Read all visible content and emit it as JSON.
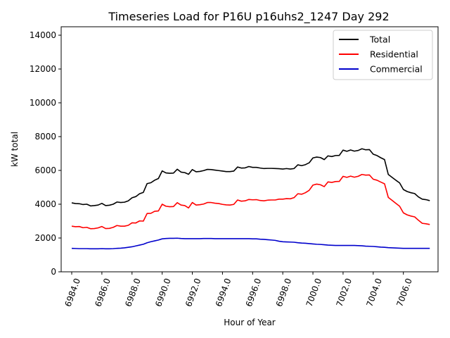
{
  "chart_data": {
    "type": "line",
    "title": "Timeseries Load for P16U p16uhs2_1247  Day 292",
    "xlabel": "Hour of Year",
    "ylabel": "kW total",
    "xlim": [
      6983.3,
      7008.3
    ],
    "ylim": [
      0,
      14500
    ],
    "xticks": [
      6984,
      6986,
      6988,
      6990,
      6992,
      6994,
      6996,
      6998,
      7000,
      7002,
      7004,
      7006
    ],
    "xtick_labels": [
      "6984.0",
      "6986.0",
      "6988.0",
      "6990.0",
      "6992.0",
      "6994.0",
      "6996.0",
      "6998.0",
      "7000.0",
      "7002.0",
      "7004.0",
      "7006.0"
    ],
    "yticks": [
      0,
      2000,
      4000,
      6000,
      8000,
      10000,
      12000,
      14000
    ],
    "ytick_labels": [
      "0",
      "2000",
      "4000",
      "6000",
      "8000",
      "10000",
      "12000",
      "14000"
    ],
    "grid": false,
    "legend_position": "top-right",
    "x_start": 6984,
    "x_step": 0.25,
    "series": [
      {
        "name": "Total",
        "color": "#000000",
        "values": [
          4080,
          4040,
          4030,
          3980,
          4000,
          3900,
          3920,
          3950,
          4050,
          3920,
          3940,
          4000,
          4130,
          4100,
          4120,
          4200,
          4380,
          4450,
          4620,
          4700,
          5220,
          5270,
          5420,
          5520,
          5970,
          5850,
          5830,
          5840,
          6070,
          5900,
          5870,
          5770,
          6050,
          5920,
          5940,
          5990,
          6060,
          6050,
          6020,
          5990,
          5960,
          5930,
          5930,
          5960,
          6200,
          6140,
          6150,
          6230,
          6180,
          6180,
          6140,
          6110,
          6120,
          6120,
          6110,
          6100,
          6080,
          6110,
          6080,
          6110,
          6330,
          6280,
          6340,
          6450,
          6740,
          6790,
          6760,
          6640,
          6860,
          6820,
          6880,
          6890,
          7200,
          7130,
          7210,
          7140,
          7180,
          7280,
          7220,
          7230,
          6960,
          6880,
          6750,
          6640,
          5760,
          5590,
          5420,
          5260,
          4870,
          4750,
          4680,
          4630,
          4430,
          4300,
          4270,
          4210
        ]
      },
      {
        "name": "Residential",
        "color": "#ff0000",
        "values": [
          2700,
          2670,
          2680,
          2610,
          2630,
          2550,
          2560,
          2600,
          2680,
          2560,
          2570,
          2630,
          2740,
          2700,
          2700,
          2750,
          2900,
          2890,
          3010,
          3000,
          3450,
          3460,
          3580,
          3600,
          4000,
          3880,
          3850,
          3860,
          4090,
          3950,
          3920,
          3780,
          4100,
          3950,
          3970,
          4010,
          4100,
          4100,
          4060,
          4040,
          3990,
          3960,
          3950,
          3990,
          4250,
          4180,
          4200,
          4280,
          4260,
          4270,
          4220,
          4200,
          4240,
          4250,
          4250,
          4300,
          4300,
          4330,
          4320,
          4390,
          4620,
          4590,
          4680,
          4820,
          5130,
          5190,
          5150,
          5040,
          5320,
          5290,
          5340,
          5350,
          5650,
          5590,
          5660,
          5600,
          5650,
          5760,
          5720,
          5730,
          5480,
          5420,
          5310,
          5210,
          4400,
          4230,
          4050,
          3880,
          3490,
          3370,
          3300,
          3250,
          3050,
          2870,
          2840,
          2800
        ]
      },
      {
        "name": "Commercial",
        "color": "#0000cc",
        "values": [
          1390,
          1380,
          1370,
          1370,
          1370,
          1360,
          1360,
          1360,
          1370,
          1360,
          1360,
          1370,
          1390,
          1400,
          1420,
          1450,
          1480,
          1530,
          1580,
          1630,
          1720,
          1780,
          1830,
          1880,
          1950,
          1970,
          1980,
          1980,
          1990,
          1970,
          1960,
          1960,
          1960,
          1960,
          1960,
          1970,
          1970,
          1970,
          1960,
          1960,
          1960,
          1960,
          1960,
          1960,
          1960,
          1960,
          1960,
          1960,
          1950,
          1950,
          1930,
          1920,
          1900,
          1880,
          1860,
          1810,
          1780,
          1770,
          1760,
          1750,
          1720,
          1700,
          1690,
          1670,
          1650,
          1630,
          1620,
          1600,
          1580,
          1570,
          1560,
          1560,
          1560,
          1560,
          1560,
          1560,
          1550,
          1540,
          1520,
          1510,
          1500,
          1480,
          1460,
          1450,
          1430,
          1420,
          1410,
          1400,
          1390,
          1390,
          1390,
          1390,
          1390,
          1390,
          1390,
          1390
        ]
      }
    ]
  }
}
